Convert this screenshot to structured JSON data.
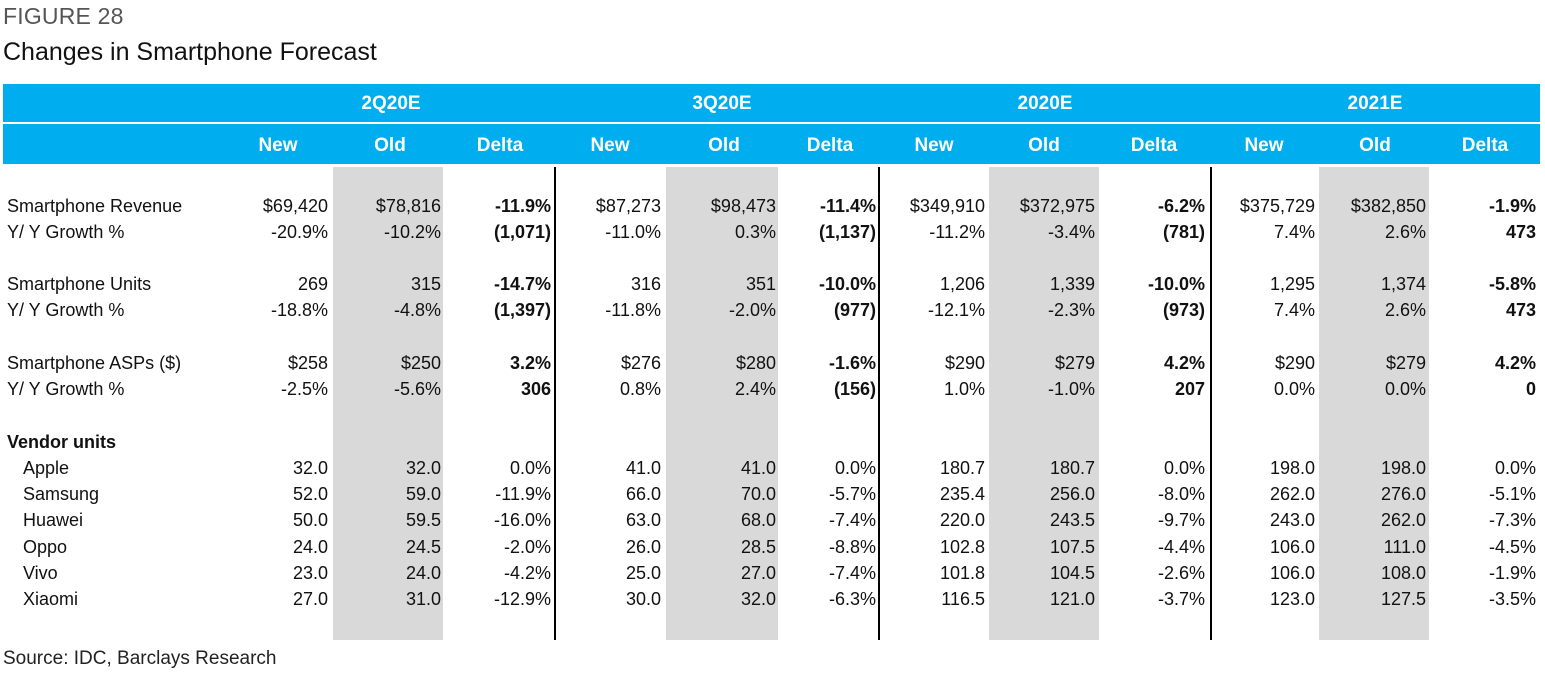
{
  "figure_label": "FIGURE 28",
  "title": "Changes in Smartphone Forecast",
  "periods": [
    "2Q20E",
    "3Q20E",
    "2020E",
    "2021E"
  ],
  "subheaders": [
    "New",
    "Old",
    "Delta",
    "New",
    "Old",
    "Delta",
    "New",
    "Old",
    "Delta",
    "New",
    "Old",
    "Delta"
  ],
  "rows": [
    {
      "label": "Smartphone Revenue",
      "bold_label": false,
      "indent": false,
      "cells": [
        "$69,420",
        "$78,816",
        "-11.9%",
        "$87,273",
        "$98,473",
        "-11.4%",
        "$349,910",
        "$372,975",
        "-6.2%",
        "$375,729",
        "$382,850",
        "-1.9%"
      ]
    },
    {
      "label": "Y/ Y Growth %",
      "bold_label": false,
      "indent": false,
      "cells": [
        "-20.9%",
        "-10.2%",
        "(1,071)",
        "-11.0%",
        "0.3%",
        "(1,137)",
        "-11.2%",
        "-3.4%",
        "(781)",
        "7.4%",
        "2.6%",
        "473"
      ]
    },
    {
      "label": "Smartphone Units",
      "bold_label": false,
      "indent": false,
      "cells": [
        "269",
        "315",
        "-14.7%",
        "316",
        "351",
        "-10.0%",
        "1,206",
        "1,339",
        "-10.0%",
        "1,295",
        "1,374",
        "-5.8%"
      ]
    },
    {
      "label": "Y/ Y Growth %",
      "bold_label": false,
      "indent": false,
      "cells": [
        "-18.8%",
        "-4.8%",
        "(1,397)",
        "-11.8%",
        "-2.0%",
        "(977)",
        "-12.1%",
        "-2.3%",
        "(973)",
        "7.4%",
        "2.6%",
        "473"
      ]
    },
    {
      "label": "Smartphone ASPs ($)",
      "bold_label": false,
      "indent": false,
      "cells": [
        "$258",
        "$250",
        "3.2%",
        "$276",
        "$280",
        "-1.6%",
        "$290",
        "$279",
        "4.2%",
        "$290",
        "$279",
        "4.2%"
      ]
    },
    {
      "label": "Y/ Y Growth %",
      "bold_label": false,
      "indent": false,
      "cells": [
        "-2.5%",
        "-5.6%",
        "306",
        "0.8%",
        "2.4%",
        "(156)",
        "1.0%",
        "-1.0%",
        "207",
        "0.0%",
        "0.0%",
        "0"
      ]
    },
    {
      "label": "Vendor units",
      "bold_label": true,
      "indent": false,
      "cells": []
    },
    {
      "label": "Apple",
      "bold_label": false,
      "indent": true,
      "cells": [
        "32.0",
        "32.0",
        "0.0%",
        "41.0",
        "41.0",
        "0.0%",
        "180.7",
        "180.7",
        "0.0%",
        "198.0",
        "198.0",
        "0.0%"
      ]
    },
    {
      "label": "Samsung",
      "bold_label": false,
      "indent": true,
      "cells": [
        "52.0",
        "59.0",
        "-11.9%",
        "66.0",
        "70.0",
        "-5.7%",
        "235.4",
        "256.0",
        "-8.0%",
        "262.0",
        "276.0",
        "-5.1%"
      ]
    },
    {
      "label": "Huawei",
      "bold_label": false,
      "indent": true,
      "cells": [
        "50.0",
        "59.5",
        "-16.0%",
        "63.0",
        "68.0",
        "-7.4%",
        "220.0",
        "243.5",
        "-9.7%",
        "243.0",
        "262.0",
        "-7.3%"
      ]
    },
    {
      "label": "Oppo",
      "bold_label": false,
      "indent": true,
      "cells": [
        "24.0",
        "24.5",
        "-2.0%",
        "26.0",
        "28.5",
        "-8.8%",
        "102.8",
        "107.5",
        "-4.4%",
        "106.0",
        "111.0",
        "-4.5%"
      ]
    },
    {
      "label": "Vivo",
      "bold_label": false,
      "indent": true,
      "cells": [
        "23.0",
        "24.0",
        "-4.2%",
        "25.0",
        "27.0",
        "-7.4%",
        "101.8",
        "104.5",
        "-2.6%",
        "106.0",
        "108.0",
        "-1.9%"
      ]
    },
    {
      "label": "Xiaomi",
      "bold_label": false,
      "indent": true,
      "cells": [
        "27.0",
        "31.0",
        "-12.9%",
        "30.0",
        "32.0",
        "-6.3%",
        "116.5",
        "121.0",
        "-3.7%",
        "123.0",
        "127.5",
        "-3.5%"
      ]
    }
  ],
  "bold_delta_rows": [
    0,
    1,
    2,
    3,
    4,
    5
  ],
  "source": "Source: IDC, Barclays Research",
  "colors": {
    "header_bg": "#00aeef",
    "header_text": "#ffffff",
    "shade": "#d9d9d9"
  }
}
